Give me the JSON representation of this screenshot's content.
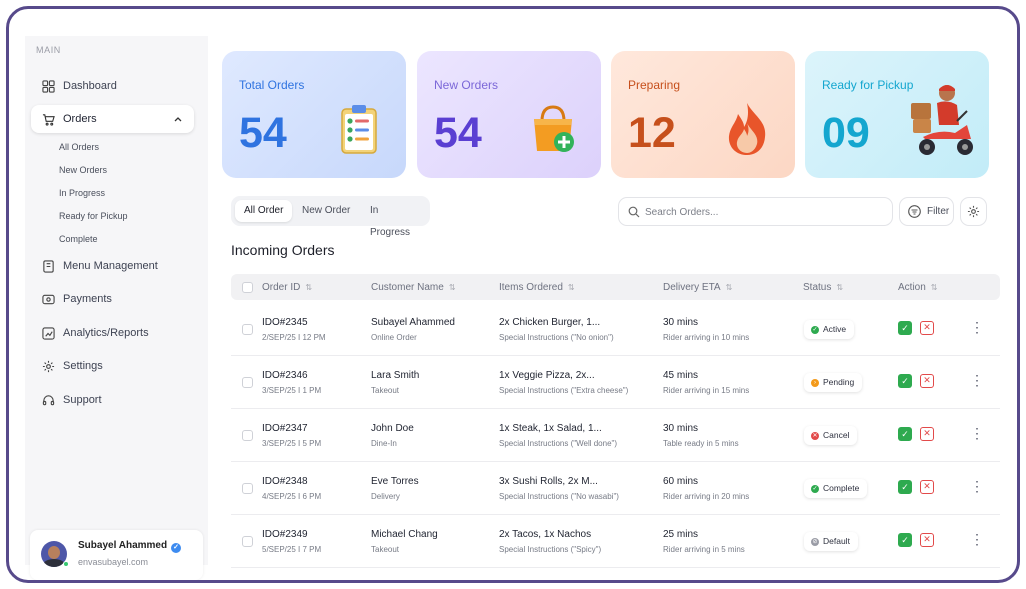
{
  "sidebar": {
    "section_label": "MAIN",
    "items": {
      "dashboard": "Dashboard",
      "orders": "Orders",
      "menu": "Menu Management",
      "payments": "Payments",
      "analytics": "Analytics/Reports",
      "settings": "Settings",
      "support": "Support"
    },
    "orders_sub": {
      "all": "All Orders",
      "new": "New Orders",
      "progress": "In Progress",
      "ready": "Ready for Pickup",
      "complete": "Complete"
    },
    "profile": {
      "name": "Subayel Ahammed",
      "email": "envasubayel.com"
    }
  },
  "stats": [
    {
      "label": "Total Orders",
      "value": "54",
      "color": "#2f73e0",
      "icon": "clipboard-checklist-icon"
    },
    {
      "label": "New Orders",
      "value": "54",
      "color": "#5a3fd2",
      "icon": "shopping-bag-plus-icon"
    },
    {
      "label": "Preparing",
      "value": "12",
      "color": "#c6501c",
      "icon": "flame-icon"
    },
    {
      "label": "Ready for Pickup",
      "value": "09",
      "color": "#14a6cf",
      "icon": "delivery-rider-icon"
    }
  ],
  "tabs": [
    "All Order",
    "New Order",
    "In Progress"
  ],
  "search": {
    "placeholder": "Search Orders..."
  },
  "filter_label": "Filter",
  "section_title": "Incoming Orders",
  "columns": [
    "Order ID",
    "Customer Name",
    "Items Ordered",
    "Delivery ETA",
    "Status",
    "Action"
  ],
  "orders": [
    {
      "id": "IDO#2345",
      "date": "2/SEP/25 I 12 PM",
      "name": "Subayel Ahammed",
      "type": "Online Order",
      "items": "2x Chicken Burger, 1...",
      "instructions": "Special Instructions (\"No onion\")",
      "eta": "30 mins",
      "eta_note": "Rider arriving in 10 mins",
      "status": "Active",
      "status_color": "#2eaa4f"
    },
    {
      "id": "IDO#2346",
      "date": "3/SEP/25 I 1 PM",
      "name": "Lara Smith",
      "type": "Takeout",
      "items": "1x Veggie Pizza, 2x...",
      "instructions": "Special Instructions (\"Extra cheese\")",
      "eta": "45 mins",
      "eta_note": "Rider arriving in 15 mins",
      "status": "Pending",
      "status_color": "#f39a1a"
    },
    {
      "id": "IDO#2347",
      "date": "3/SEP/25 I 5 PM",
      "name": "John Doe",
      "type": "Dine-In",
      "items": "1x Steak, 1x Salad, 1...",
      "instructions": "Special Instructions (\"Well done\")",
      "eta": "30 mins",
      "eta_note": "Table ready in 5 mins",
      "status": "Cancel",
      "status_color": "#e24a4a"
    },
    {
      "id": "IDO#2348",
      "date": "4/SEP/25 I 6 PM",
      "name": "Eve Torres",
      "type": "Delivery",
      "items": "3x Sushi Rolls, 2x M...",
      "instructions": "Special Instructions (\"No wasabi\")",
      "eta": "60 mins",
      "eta_note": "Rider arriving in 20 mins",
      "status": "Complete",
      "status_color": "#2eaa4f"
    },
    {
      "id": "IDO#2349",
      "date": "5/SEP/25 I 7 PM",
      "name": "Michael Chang",
      "type": "Takeout",
      "items": "2x Tacos, 1x Nachos",
      "instructions": "Special Instructions (\"Spicy\")",
      "eta": "25 mins",
      "eta_note": "Rider arriving in 5 mins",
      "status": "Default",
      "status_color": "#9a9ca6"
    }
  ]
}
